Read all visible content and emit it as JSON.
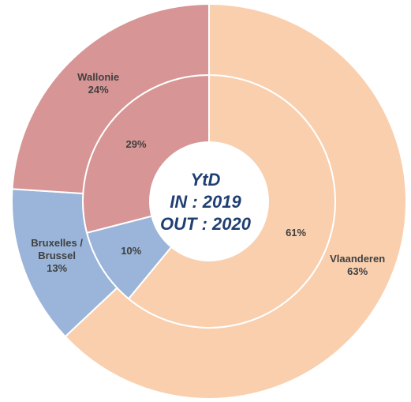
{
  "chart_data": {
    "type": "donut",
    "center_text": [
      "YtD",
      "IN : 2019",
      "OUT : 2020"
    ],
    "categories": [
      "Vlaanderen",
      "Bruxelles / Brussel",
      "Wallonie"
    ],
    "colors": [
      "#f9cfae",
      "#9ab5d9",
      "#d79595"
    ],
    "series": [
      {
        "ring": "inner",
        "values": [
          61,
          10,
          29
        ],
        "value_labels": [
          "61%",
          "10%",
          "29%"
        ]
      },
      {
        "ring": "outer",
        "values": [
          63,
          13,
          24
        ],
        "value_labels": [
          "63%",
          "13%",
          "24%"
        ]
      }
    ]
  }
}
